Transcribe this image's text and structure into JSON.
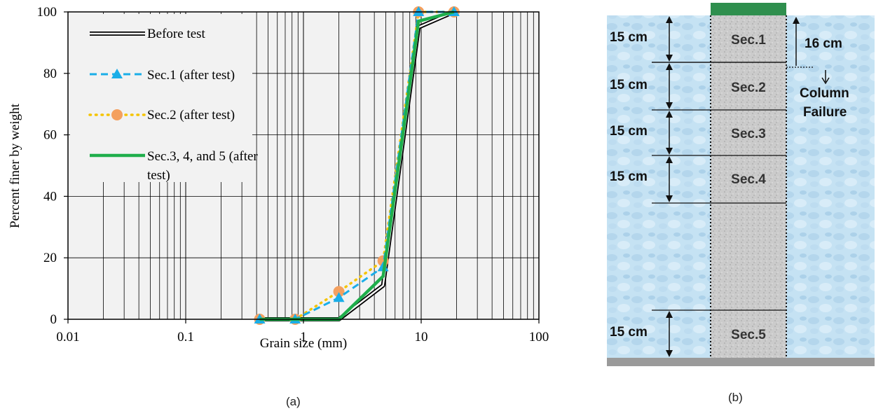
{
  "panel_a": {
    "caption": "(a)",
    "chart_data": {
      "type": "line",
      "xscale": "log",
      "xlim": [
        0.01,
        100
      ],
      "ylim": [
        0,
        100
      ],
      "xlabel": "Grain size (mm)",
      "ylabel": "Percent finer by weight",
      "x_ticks": [
        "0.01",
        "0.1",
        "1",
        "10",
        "100"
      ],
      "y_ticks": [
        "0",
        "20",
        "40",
        "60",
        "80",
        "100"
      ],
      "grid": true,
      "legend_position": "top-left",
      "series": [
        {
          "name": "Before test",
          "color": "#000000",
          "style": "double-line",
          "marker": "none",
          "x": [
            0.425,
            2.0,
            4.75,
            9.5,
            19.0
          ],
          "y": [
            0,
            0,
            11,
            95,
            100
          ]
        },
        {
          "name": "Sec.1 (after test)",
          "color": "#1aaee8",
          "style": "dashed",
          "marker": "triangle",
          "x": [
            0.425,
            0.85,
            2.0,
            4.75,
            9.5,
            19.0
          ],
          "y": [
            0,
            0,
            7,
            17,
            100,
            100
          ]
        },
        {
          "name": "Sec.2 (after test)",
          "color": "#f5c400",
          "style": "dotted",
          "marker": "circle",
          "marker_color": "#f4a05f",
          "x": [
            0.425,
            0.85,
            2.0,
            4.75,
            9.5,
            19.0
          ],
          "y": [
            0,
            0,
            9,
            19,
            100,
            100
          ]
        },
        {
          "name": "Sec.3, 4, and 5 (after test)",
          "color": "#1fae4b",
          "style": "solid-thick",
          "marker": "none",
          "x": [
            0.425,
            2.0,
            4.75,
            9.5,
            19.0
          ],
          "y": [
            0,
            0,
            14,
            97,
            100
          ]
        }
      ]
    }
  },
  "panel_b": {
    "caption": "(b)",
    "sections": [
      "Sec.1",
      "Sec.2",
      "Sec.3",
      "Sec.4",
      "Sec.5"
    ],
    "section_height_label": "15 cm",
    "failure_depth_label": "16 cm",
    "failure_label_line1": "Column",
    "failure_label_line2": "Failure",
    "colors": {
      "water": "#c7e3f3",
      "column": "#cdcdcd",
      "cap": "#2f8f4e",
      "base": "#9a9a9a"
    }
  }
}
